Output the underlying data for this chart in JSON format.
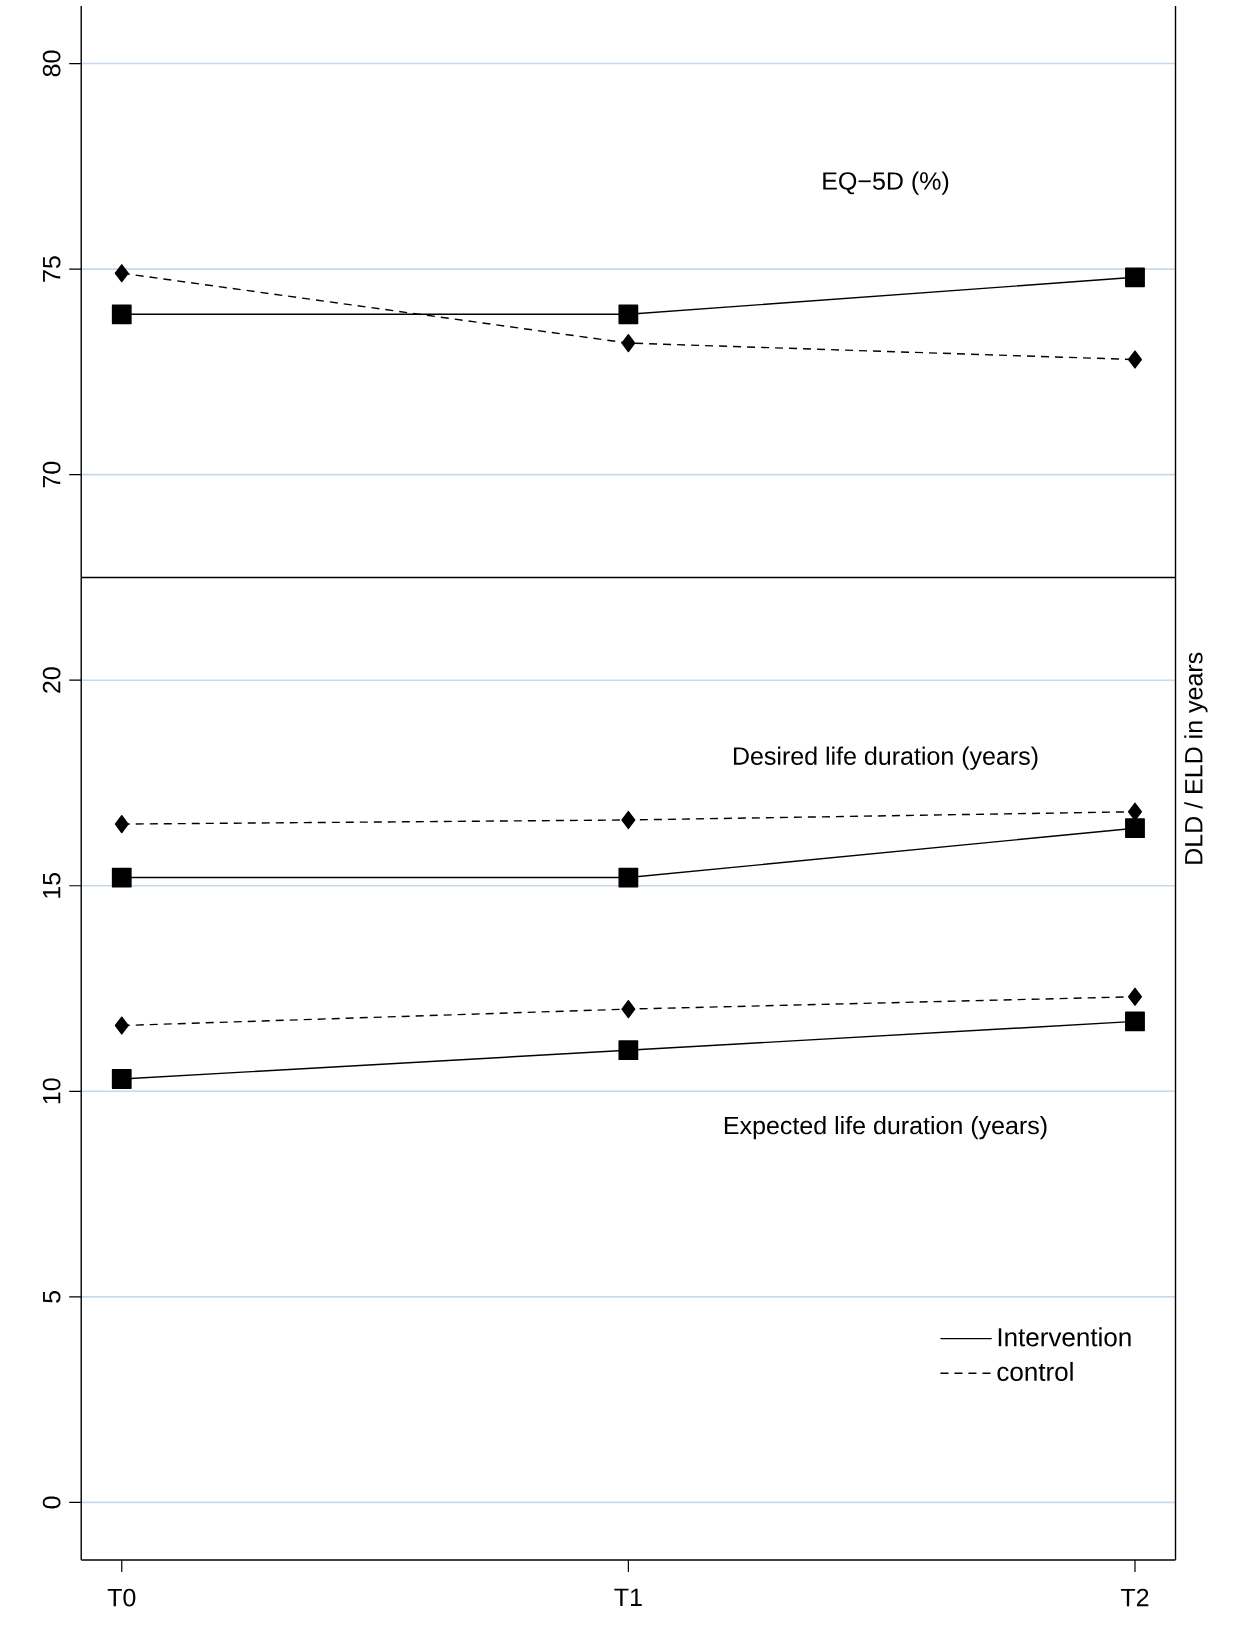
{
  "chart_data": [
    {
      "type": "line",
      "categories": [
        null,
        null,
        null
      ],
      "ylim": [
        67.5,
        81.4
      ],
      "yticks": [
        70,
        75,
        80
      ],
      "grid": "y",
      "tick_labels": "y",
      "annotations": [
        "EQ−5D (%)"
      ],
      "series": [
        {
          "color": "#000000",
          "marker": "square",
          "line_style": "solid",
          "values": [
            73.9,
            73.9,
            74.8
          ]
        },
        {
          "color": "#000000",
          "marker": "diamond",
          "line_style": "dashed",
          "values": [
            74.9,
            73.2,
            72.8
          ]
        }
      ]
    },
    {
      "type": "line",
      "categories": [
        "T0",
        "T1",
        "T2"
      ],
      "ylim": [
        -1.4,
        22.5
      ],
      "yticks": [
        0,
        5,
        10,
        15,
        20
      ],
      "grid": "y",
      "ylabel": "DLD / ELD in years",
      "legend": "bottom right",
      "annotations": [
        "Desired life duration (years)",
        "Expected life duration (years)"
      ],
      "series": [
        {
          "name": "Intervention",
          "color": "#000000",
          "marker": "square",
          "line_style": "solid",
          "values": [
            15.2,
            15.2,
            16.4
          ]
        },
        {
          "name": "control",
          "color": "#000000",
          "marker": "diamond",
          "line_style": "dashed",
          "values": [
            16.5,
            16.6,
            16.8
          ]
        },
        {
          "color": "#000000",
          "marker": "square",
          "line_style": "solid",
          "values": [
            10.3,
            11.0,
            11.7
          ]
        },
        {
          "color": "#000000",
          "marker": "diamond",
          "line_style": "dashed",
          "values": [
            11.6,
            12.0,
            12.3
          ]
        }
      ]
    }
  ]
}
